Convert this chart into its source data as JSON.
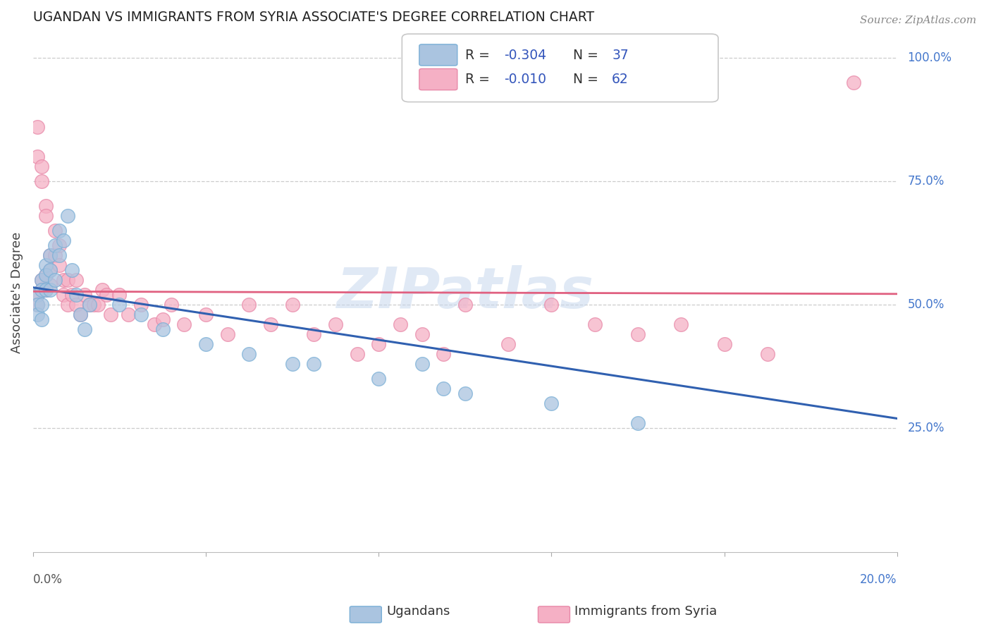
{
  "title": "UGANDAN VS IMMIGRANTS FROM SYRIA ASSOCIATE'S DEGREE CORRELATION CHART",
  "source": "Source: ZipAtlas.com",
  "ylabel": "Associate's Degree",
  "y_tick_values": [
    0.25,
    0.5,
    0.75,
    1.0
  ],
  "x_min": 0.0,
  "x_max": 0.2,
  "y_min": 0.0,
  "y_max": 1.05,
  "ugandan_color": "#aac4e0",
  "syria_color": "#f5b0c5",
  "ugandan_edge": "#7aafd6",
  "syria_edge": "#e888a8",
  "trend_blue": "#3060b0",
  "trend_pink": "#e06080",
  "legend_r_blue": "-0.304",
  "legend_n_blue": "37",
  "legend_r_pink": "-0.010",
  "legend_n_pink": "62",
  "watermark": "ZIPatlas",
  "ugandan_x": [
    0.001,
    0.001,
    0.001,
    0.002,
    0.002,
    0.002,
    0.002,
    0.003,
    0.003,
    0.003,
    0.004,
    0.004,
    0.004,
    0.005,
    0.005,
    0.006,
    0.006,
    0.007,
    0.008,
    0.009,
    0.01,
    0.011,
    0.012,
    0.013,
    0.02,
    0.025,
    0.03,
    0.04,
    0.05,
    0.06,
    0.065,
    0.08,
    0.09,
    0.095,
    0.1,
    0.12,
    0.14
  ],
  "ugandan_y": [
    0.52,
    0.5,
    0.48,
    0.55,
    0.53,
    0.5,
    0.47,
    0.58,
    0.56,
    0.53,
    0.6,
    0.57,
    0.53,
    0.62,
    0.55,
    0.65,
    0.6,
    0.63,
    0.68,
    0.57,
    0.52,
    0.48,
    0.45,
    0.5,
    0.5,
    0.48,
    0.45,
    0.42,
    0.4,
    0.38,
    0.38,
    0.35,
    0.38,
    0.33,
    0.32,
    0.3,
    0.26
  ],
  "syria_x": [
    0.001,
    0.001,
    0.001,
    0.001,
    0.002,
    0.002,
    0.002,
    0.002,
    0.003,
    0.003,
    0.003,
    0.003,
    0.004,
    0.004,
    0.004,
    0.005,
    0.005,
    0.006,
    0.006,
    0.007,
    0.007,
    0.008,
    0.008,
    0.009,
    0.01,
    0.01,
    0.011,
    0.012,
    0.013,
    0.014,
    0.015,
    0.016,
    0.017,
    0.018,
    0.02,
    0.022,
    0.025,
    0.028,
    0.03,
    0.032,
    0.035,
    0.04,
    0.045,
    0.05,
    0.055,
    0.06,
    0.065,
    0.07,
    0.075,
    0.08,
    0.085,
    0.09,
    0.095,
    0.1,
    0.11,
    0.12,
    0.13,
    0.14,
    0.15,
    0.16,
    0.17,
    0.19
  ],
  "syria_y": [
    0.52,
    0.5,
    0.8,
    0.86,
    0.55,
    0.53,
    0.75,
    0.78,
    0.56,
    0.53,
    0.7,
    0.68,
    0.6,
    0.57,
    0.54,
    0.65,
    0.6,
    0.62,
    0.58,
    0.55,
    0.52,
    0.55,
    0.5,
    0.52,
    0.55,
    0.5,
    0.48,
    0.52,
    0.5,
    0.5,
    0.5,
    0.53,
    0.52,
    0.48,
    0.52,
    0.48,
    0.5,
    0.46,
    0.47,
    0.5,
    0.46,
    0.48,
    0.44,
    0.5,
    0.46,
    0.5,
    0.44,
    0.46,
    0.4,
    0.42,
    0.46,
    0.44,
    0.4,
    0.5,
    0.42,
    0.5,
    0.46,
    0.44,
    0.46,
    0.42,
    0.4,
    0.95
  ],
  "blue_line_x": [
    0.0,
    0.2
  ],
  "blue_line_y": [
    0.535,
    0.27
  ],
  "pink_line_x": [
    0.0,
    0.2
  ],
  "pink_line_y": [
    0.527,
    0.522
  ]
}
